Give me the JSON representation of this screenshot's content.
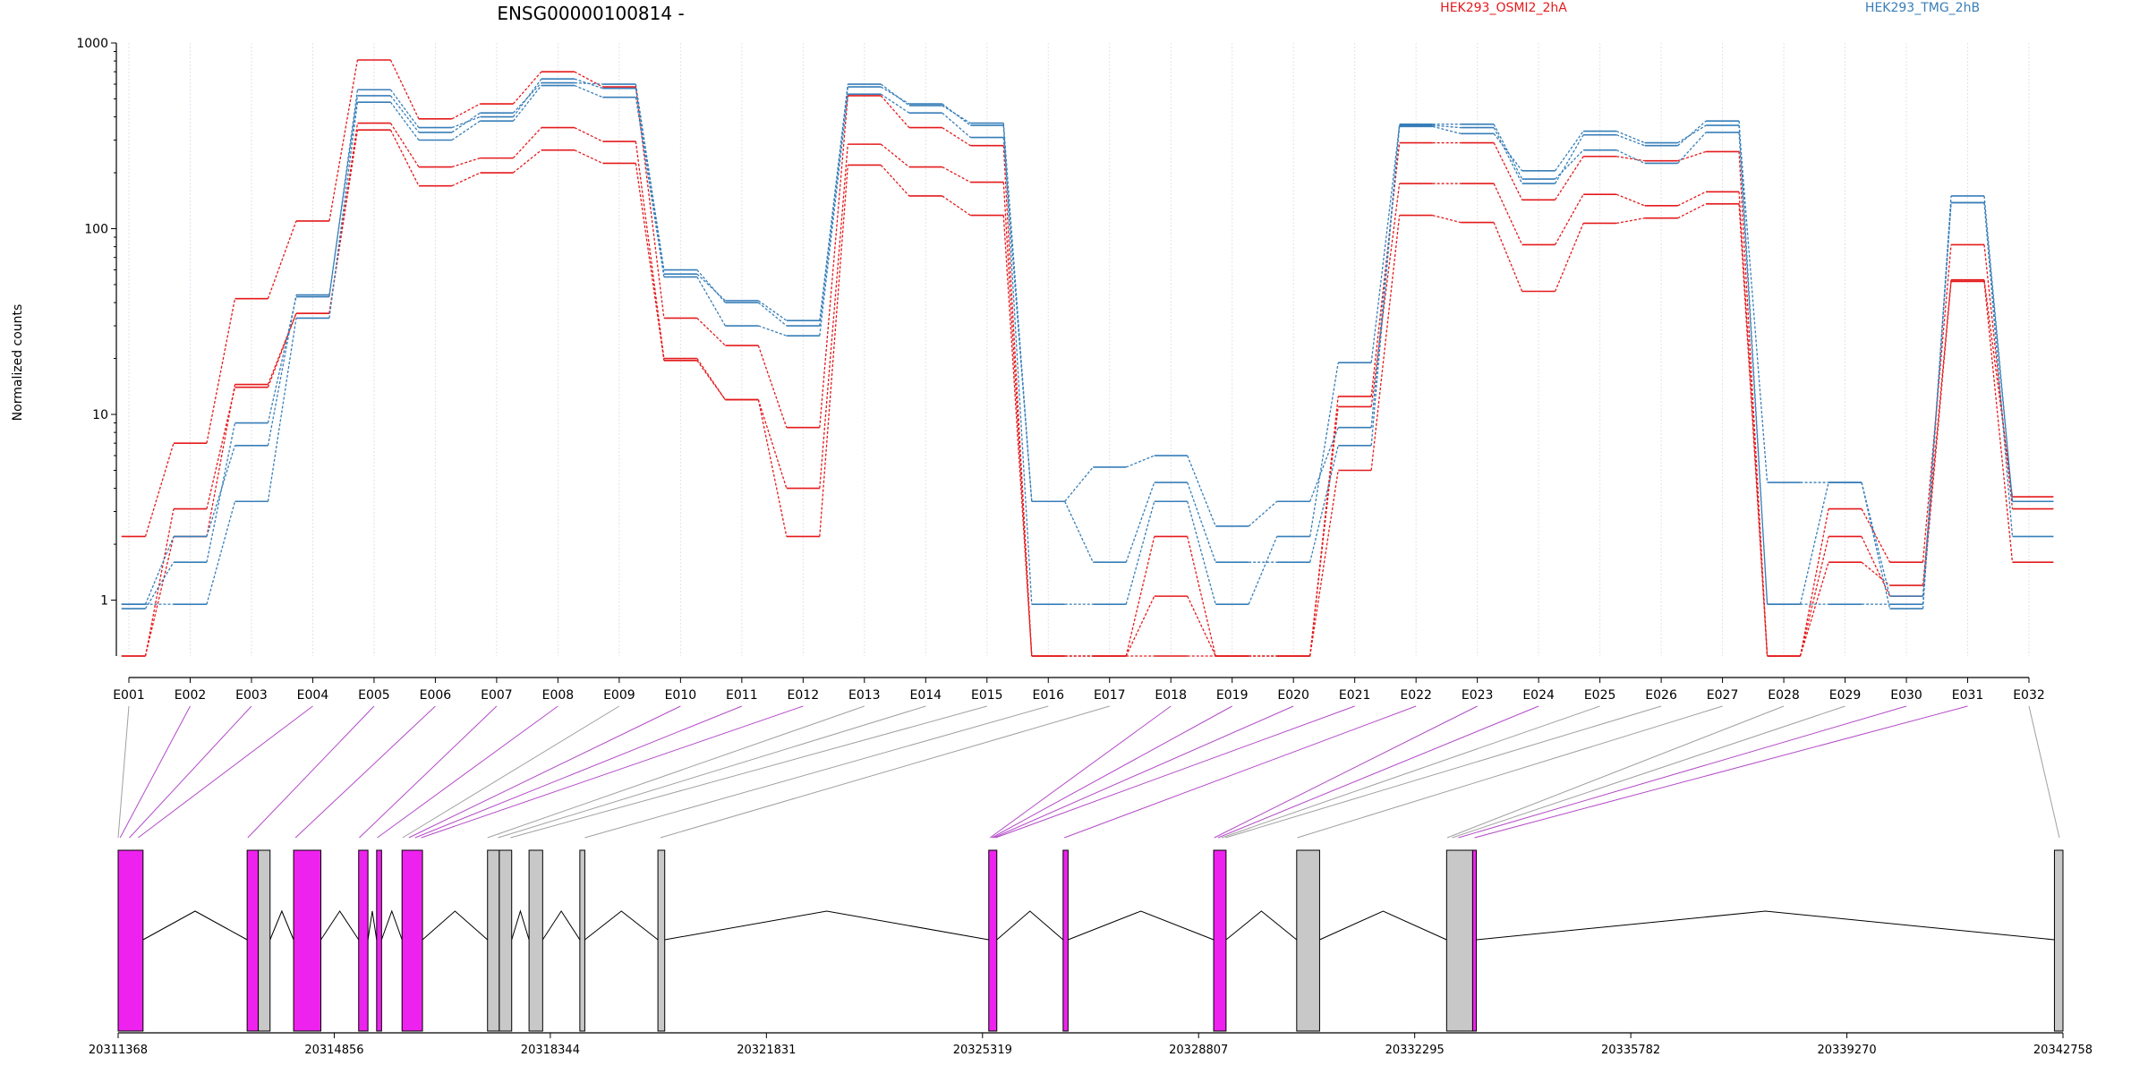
{
  "chart_data": {
    "type": "line",
    "title": "ENSG00000100814 -",
    "ylabel": "Normalized counts",
    "yscale": "log",
    "ylim": [
      0.5,
      1000
    ],
    "yticks": [
      {
        "value": 1,
        "label": "1"
      },
      {
        "value": 10,
        "label": "10"
      },
      {
        "value": 100,
        "label": "100"
      },
      {
        "value": 1000,
        "label": "1000"
      }
    ],
    "categories": [
      "E001",
      "E002",
      "E003",
      "E004",
      "E005",
      "E006",
      "E007",
      "E008",
      "E009",
      "E010",
      "E011",
      "E012",
      "E013",
      "E014",
      "E015",
      "E016",
      "E017",
      "E018",
      "E019",
      "E020",
      "E021",
      "E022",
      "E023",
      "E024",
      "E025",
      "E026",
      "E027",
      "E028",
      "E029",
      "E030",
      "E031",
      "E032"
    ],
    "grid": true,
    "legend_position": "top",
    "conditions": [
      {
        "name": "HEK293_OSMI2_2hA",
        "color": "#e41a1c"
      },
      {
        "name": "HEK293_TMG_2hB",
        "color": "#377eb8"
      }
    ],
    "series": [
      {
        "condition": "HEK293_OSMI2_2hA",
        "color": "#e41a1c",
        "values": [
          0.5,
          3.1,
          14,
          35,
          340,
          170,
          200,
          265,
          225,
          19.5,
          12,
          2.2,
          220,
          150,
          118,
          0.5,
          0.5,
          1.05,
          0.5,
          0.5,
          5,
          118,
          108,
          46,
          107,
          114,
          136,
          0.5,
          1.6,
          1.2,
          53,
          3.6
        ]
      },
      {
        "condition": "HEK293_OSMI2_2hA",
        "color": "#e41a1c",
        "values": [
          2.2,
          7,
          42,
          110,
          810,
          390,
          470,
          700,
          580,
          33,
          23.5,
          8.5,
          520,
          350,
          280,
          0.5,
          0.5,
          2.2,
          0.5,
          0.5,
          11,
          175,
          175,
          82,
          153,
          133,
          158,
          0.5,
          3.1,
          1.6,
          82,
          3.1
        ]
      },
      {
        "condition": "HEK293_OSMI2_2hA",
        "color": "#e41a1c",
        "values": [
          0.5,
          2.2,
          14.5,
          35,
          370,
          215,
          240,
          350,
          295,
          20,
          12,
          4,
          285,
          215,
          178,
          0.5,
          0.5,
          0.5,
          0.5,
          0.5,
          12.5,
          290,
          290,
          143,
          245,
          232,
          260,
          0.5,
          2.2,
          1.05,
          52,
          1.6
        ]
      },
      {
        "condition": "HEK293_TMG_2hB",
        "color": "#377eb8",
        "values": [
          0.95,
          0.95,
          3.4,
          33,
          480,
          300,
          380,
          590,
          510,
          55,
          30,
          26.5,
          530,
          420,
          310,
          3.4,
          1.6,
          4.3,
          1.6,
          1.6,
          6.8,
          365,
          365,
          185,
          265,
          225,
          330,
          0.95,
          0.95,
          0.95,
          138,
          2.2
        ]
      },
      {
        "condition": "HEK293_TMG_2hB",
        "color": "#377eb8",
        "values": [
          0.95,
          2.2,
          6.8,
          44,
          520,
          330,
          420,
          610,
          600,
          60,
          40,
          30,
          580,
          470,
          360,
          0.95,
          0.95,
          3.4,
          0.95,
          2.2,
          19,
          360,
          350,
          175,
          320,
          280,
          380,
          0.95,
          4.3,
          1.05,
          138,
          3.4
        ]
      },
      {
        "condition": "HEK293_TMG_2hB",
        "color": "#377eb8",
        "values": [
          0.9,
          1.6,
          9,
          43,
          560,
          350,
          400,
          640,
          570,
          57,
          41,
          32,
          600,
          460,
          370,
          3.4,
          5.2,
          6,
          2.5,
          3.4,
          8.5,
          355,
          325,
          205,
          335,
          290,
          360,
          4.3,
          4.3,
          0.9,
          150,
          3.4
        ]
      }
    ],
    "gene_model": {
      "coordinate_labels": [
        "20311368",
        "20314856",
        "20318344",
        "20321831",
        "20325319",
        "20328807",
        "20332295",
        "20335782",
        "20339270",
        "20342758"
      ],
      "coord_start": 20311368,
      "coord_end": 20342758,
      "blocks": [
        {
          "start": 20311368,
          "end": 20311770,
          "highlight": true
        },
        {
          "start": 20313450,
          "end": 20313630,
          "highlight": true
        },
        {
          "start": 20313630,
          "end": 20313820,
          "highlight": false
        },
        {
          "start": 20314200,
          "end": 20314640,
          "highlight": true
        },
        {
          "start": 20315250,
          "end": 20315400,
          "highlight": true
        },
        {
          "start": 20315540,
          "end": 20315620,
          "highlight": true
        },
        {
          "start": 20315950,
          "end": 20316280,
          "highlight": true
        },
        {
          "start": 20317330,
          "end": 20317520,
          "highlight": false
        },
        {
          "start": 20317520,
          "end": 20317720,
          "highlight": false
        },
        {
          "start": 20318000,
          "end": 20318220,
          "highlight": false
        },
        {
          "start": 20318820,
          "end": 20318900,
          "highlight": false
        },
        {
          "start": 20320080,
          "end": 20320190,
          "highlight": false
        },
        {
          "start": 20325420,
          "end": 20325550,
          "highlight": true
        },
        {
          "start": 20326620,
          "end": 20326700,
          "highlight": true
        },
        {
          "start": 20329050,
          "end": 20329250,
          "highlight": true
        },
        {
          "start": 20330390,
          "end": 20330760,
          "highlight": false
        },
        {
          "start": 20332810,
          "end": 20333230,
          "highlight": false
        },
        {
          "start": 20333230,
          "end": 20333290,
          "highlight": true
        },
        {
          "start": 20342620,
          "end": 20342758,
          "highlight": false
        }
      ],
      "intron_segments": [
        [
          20311770,
          20313450
        ],
        [
          20313820,
          20314200
        ],
        [
          20314640,
          20315250
        ],
        [
          20315400,
          20315540
        ],
        [
          20315620,
          20315950
        ],
        [
          20316280,
          20317330
        ],
        [
          20317720,
          20318000
        ],
        [
          20318220,
          20318820
        ],
        [
          20318900,
          20320080
        ],
        [
          20320190,
          20325420
        ],
        [
          20325550,
          20326620
        ],
        [
          20326700,
          20329050
        ],
        [
          20329250,
          20330390
        ],
        [
          20330760,
          20332810
        ],
        [
          20333290,
          20342620
        ]
      ],
      "exon_bin_links": [
        {
          "bin": "E001",
          "pos": 20311368,
          "highlight": false
        },
        {
          "bin": "E002",
          "pos": 20311400,
          "highlight": true
        },
        {
          "bin": "E003",
          "pos": 20311550,
          "highlight": true
        },
        {
          "bin": "E004",
          "pos": 20311690,
          "highlight": true
        },
        {
          "bin": "E005",
          "pos": 20313460,
          "highlight": true
        },
        {
          "bin": "E006",
          "pos": 20314230,
          "highlight": true
        },
        {
          "bin": "E007",
          "pos": 20315260,
          "highlight": true
        },
        {
          "bin": "E008",
          "pos": 20315550,
          "highlight": true
        },
        {
          "bin": "E009",
          "pos": 20315960,
          "highlight": false
        },
        {
          "bin": "E010",
          "pos": 20316060,
          "highlight": true
        },
        {
          "bin": "E011",
          "pos": 20316160,
          "highlight": true
        },
        {
          "bin": "E012",
          "pos": 20316260,
          "highlight": true
        },
        {
          "bin": "E013",
          "pos": 20317330,
          "highlight": false
        },
        {
          "bin": "E014",
          "pos": 20317500,
          "highlight": false
        },
        {
          "bin": "E015",
          "pos": 20317700,
          "highlight": false
        },
        {
          "bin": "E016",
          "pos": 20318900,
          "highlight": false
        },
        {
          "bin": "E017",
          "pos": 20320120,
          "highlight": false
        },
        {
          "bin": "E018",
          "pos": 20325440,
          "highlight": true
        },
        {
          "bin": "E019",
          "pos": 20325470,
          "highlight": true
        },
        {
          "bin": "E020",
          "pos": 20325500,
          "highlight": true
        },
        {
          "bin": "E021",
          "pos": 20325530,
          "highlight": true
        },
        {
          "bin": "E022",
          "pos": 20326640,
          "highlight": true
        },
        {
          "bin": "E023",
          "pos": 20329060,
          "highlight": true
        },
        {
          "bin": "E024",
          "pos": 20329120,
          "highlight": true
        },
        {
          "bin": "E025",
          "pos": 20329180,
          "highlight": false
        },
        {
          "bin": "E026",
          "pos": 20329240,
          "highlight": false
        },
        {
          "bin": "E027",
          "pos": 20330400,
          "highlight": false
        },
        {
          "bin": "E028",
          "pos": 20332820,
          "highlight": false
        },
        {
          "bin": "E029",
          "pos": 20332900,
          "highlight": false
        },
        {
          "bin": "E030",
          "pos": 20333000,
          "highlight": true
        },
        {
          "bin": "E031",
          "pos": 20333260,
          "highlight": true
        },
        {
          "bin": "E032",
          "pos": 20342700,
          "highlight": false
        }
      ]
    }
  },
  "colors": {
    "condition_a": "#e41a1c",
    "condition_b": "#377eb8",
    "highlight_exon": "#ee22ee",
    "plain_exon": "#c8c8c8",
    "highlight_link": "#b44bc8",
    "plain_link": "#a0a0a0",
    "grid": "#e2e2f0"
  }
}
